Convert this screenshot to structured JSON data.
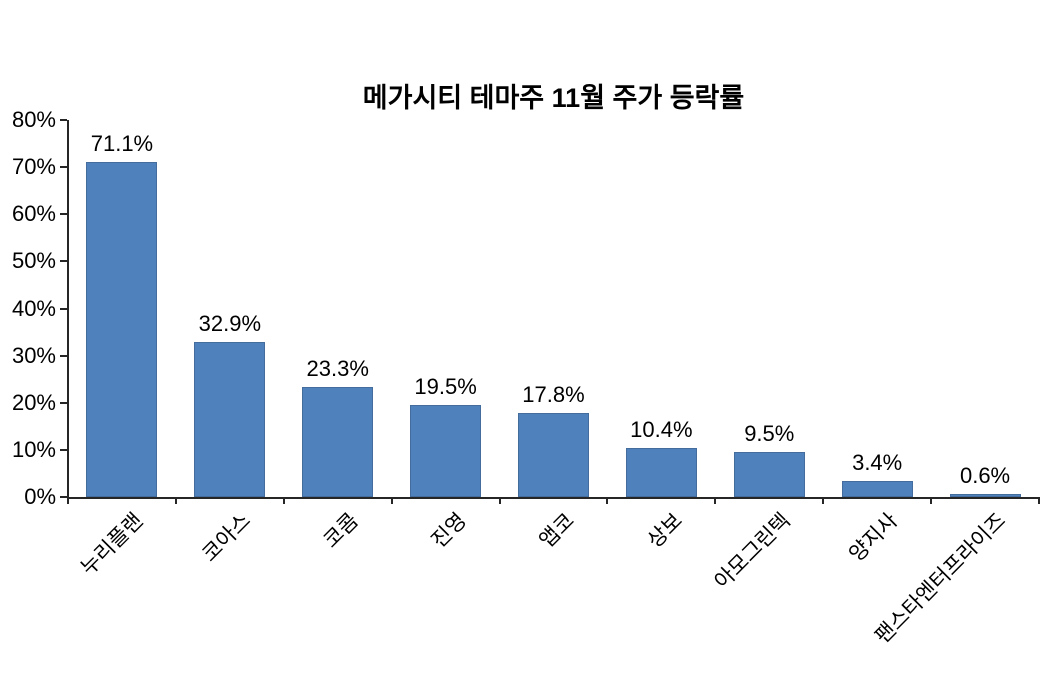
{
  "chart_data": {
    "type": "bar",
    "title": "메가시티 테마주 11월 주가 등락률",
    "categories": [
      "누리플랜",
      "코아스",
      "코콤",
      "진영",
      "앱코",
      "상보",
      "아모그린텍",
      "양지사",
      "팬스타엔터프라이즈"
    ],
    "values": [
      71.1,
      32.9,
      23.3,
      19.5,
      17.8,
      10.4,
      9.5,
      3.4,
      0.6
    ],
    "value_labels": [
      "71.1%",
      "32.9%",
      "23.3%",
      "19.5%",
      "17.8%",
      "10.4%",
      "9.5%",
      "3.4%",
      "0.6%"
    ],
    "xlabel": "",
    "ylabel": "",
    "ylim": [
      0,
      80
    ],
    "ytick_step": 10,
    "ytick_labels": [
      "0%",
      "10%",
      "20%",
      "30%",
      "40%",
      "50%",
      "60%",
      "70%",
      "80%"
    ],
    "grid": false,
    "legend": false,
    "bar_color": "#4f81bd",
    "bar_border_color": "#446d9e",
    "axis_color": "#262626",
    "text_color": "#000000",
    "background_color": "#ffffff"
  }
}
